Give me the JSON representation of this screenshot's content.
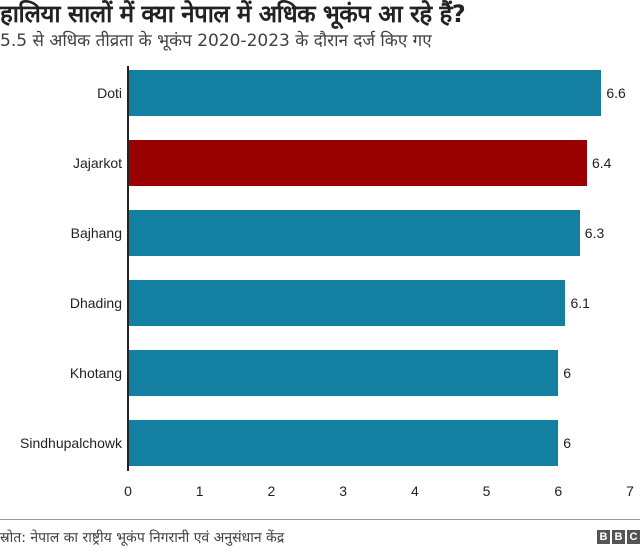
{
  "header": {
    "title": "हालिया सालों में क्या नेपाल में अधिक भूकंप आ रहे हैं?",
    "subtitle": "5.5 से अधिक तीव्रता के भूकंप 2020-2023 के दौरान दर्ज किए गए"
  },
  "footer": {
    "source": "स्रोत: नेपाल का राष्ट्रीय भूकंप निगरानी एवं अनुसंधान केंद्र",
    "logo_letters": [
      "B",
      "B",
      "C"
    ]
  },
  "colors": {
    "default_bar": "#1380A1",
    "highlight_bar": "#990000"
  },
  "chart_data": {
    "type": "bar",
    "orientation": "horizontal",
    "title": "हालिया सालों में क्या नेपाल में अधिक भूकंप आ रहे हैं?",
    "subtitle": "5.5 से अधिक तीव्रता के भूकंप 2020-2023 के दौरान दर्ज किए गए",
    "categories": [
      "Doti",
      "Jajarkot",
      "Bajhang",
      "Dhading",
      "Khotang",
      "Sindhupalchowk"
    ],
    "values": [
      6.6,
      6.4,
      6.3,
      6.1,
      6,
      6
    ],
    "value_labels": [
      "6.6",
      "6.4",
      "6.3",
      "6.1",
      "6",
      "6"
    ],
    "highlight": [
      "Jajarkot"
    ],
    "xlabel": "",
    "ylabel": "",
    "xlim": [
      0,
      7
    ],
    "xticks": [
      "0",
      "1",
      "2",
      "3",
      "4",
      "5",
      "6",
      "7"
    ],
    "grid": false,
    "legend": null,
    "source": "स्रोत: नेपाल का राष्ट्रीय भूकंप निगरानी एवं अनुसंधान केंद्र"
  }
}
